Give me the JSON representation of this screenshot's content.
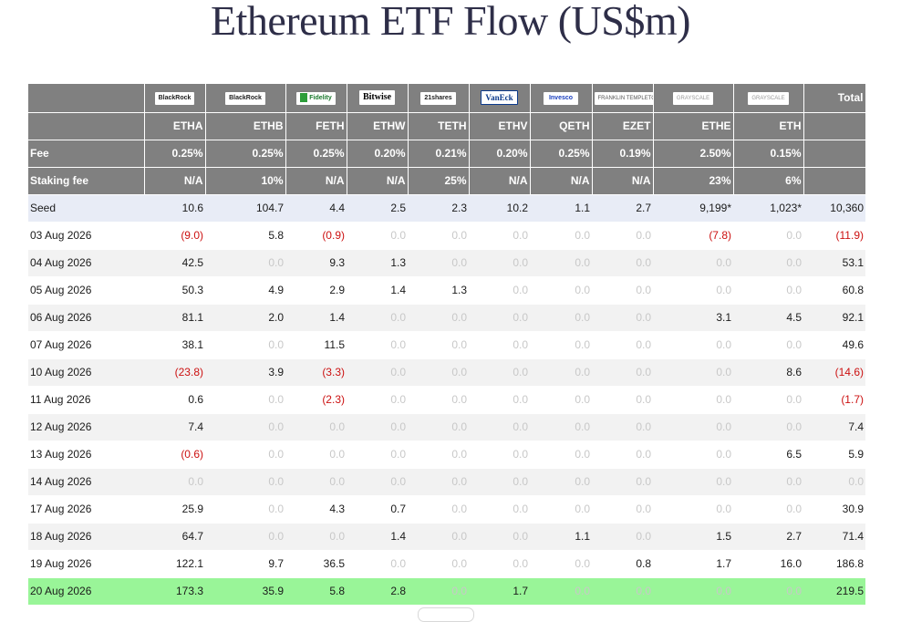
{
  "title": "Ethereum ETF Flow (US$m)",
  "issuers": [
    {
      "name": "BlackRock",
      "style": ""
    },
    {
      "name": "BlackRock",
      "style": ""
    },
    {
      "name": "Fidelity",
      "style": "fidelity"
    },
    {
      "name": "Bitwise",
      "style": "bitwise"
    },
    {
      "name": "21shares",
      "style": ""
    },
    {
      "name": "VanEck",
      "style": "vaneck"
    },
    {
      "name": "Invesco",
      "style": "invesco"
    },
    {
      "name": "FRANKLIN TEMPLETON",
      "style": "small"
    },
    {
      "name": "GRAYSCALE",
      "style": "gray"
    },
    {
      "name": "GRAYSCALE",
      "style": "gray"
    }
  ],
  "total_label": "Total",
  "tickers": [
    "ETHA",
    "ETHB",
    "FETH",
    "ETHW",
    "TETH",
    "ETHV",
    "QETH",
    "EZET",
    "ETHE",
    "ETH"
  ],
  "fee_label": "Fee",
  "fees": [
    "0.25%",
    "0.25%",
    "0.25%",
    "0.20%",
    "0.21%",
    "0.20%",
    "0.25%",
    "0.19%",
    "2.50%",
    "0.15%"
  ],
  "staking_label": "Staking fee",
  "staking_fees": [
    "N/A",
    "10%",
    "N/A",
    "N/A",
    "25%",
    "N/A",
    "N/A",
    "N/A",
    "23%",
    "6%"
  ],
  "rows": [
    {
      "date": "Seed",
      "values": [
        "10.6",
        "104.7",
        "4.4",
        "2.5",
        "2.3",
        "10.2",
        "1.1",
        "2.7",
        "9,199*",
        "1,023*"
      ],
      "total": "10,360"
    },
    {
      "date": "03 Aug 2026",
      "values": [
        "(9.0)",
        "5.8",
        "(0.9)",
        "0.0",
        "0.0",
        "0.0",
        "0.0",
        "0.0",
        "(7.8)",
        "0.0"
      ],
      "total": "(11.9)"
    },
    {
      "date": "04 Aug 2026",
      "values": [
        "42.5",
        "0.0",
        "9.3",
        "1.3",
        "0.0",
        "0.0",
        "0.0",
        "0.0",
        "0.0",
        "0.0"
      ],
      "total": "53.1"
    },
    {
      "date": "05 Aug 2026",
      "values": [
        "50.3",
        "4.9",
        "2.9",
        "1.4",
        "1.3",
        "0.0",
        "0.0",
        "0.0",
        "0.0",
        "0.0"
      ],
      "total": "60.8"
    },
    {
      "date": "06 Aug 2026",
      "values": [
        "81.1",
        "2.0",
        "1.4",
        "0.0",
        "0.0",
        "0.0",
        "0.0",
        "0.0",
        "3.1",
        "4.5"
      ],
      "total": "92.1"
    },
    {
      "date": "07 Aug 2026",
      "values": [
        "38.1",
        "0.0",
        "11.5",
        "0.0",
        "0.0",
        "0.0",
        "0.0",
        "0.0",
        "0.0",
        "0.0"
      ],
      "total": "49.6"
    },
    {
      "date": "10 Aug 2026",
      "values": [
        "(23.8)",
        "3.9",
        "(3.3)",
        "0.0",
        "0.0",
        "0.0",
        "0.0",
        "0.0",
        "0.0",
        "8.6"
      ],
      "total": "(14.6)"
    },
    {
      "date": "11 Aug 2026",
      "values": [
        "0.6",
        "0.0",
        "(2.3)",
        "0.0",
        "0.0",
        "0.0",
        "0.0",
        "0.0",
        "0.0",
        "0.0"
      ],
      "total": "(1.7)"
    },
    {
      "date": "12 Aug 2026",
      "values": [
        "7.4",
        "0.0",
        "0.0",
        "0.0",
        "0.0",
        "0.0",
        "0.0",
        "0.0",
        "0.0",
        "0.0"
      ],
      "total": "7.4"
    },
    {
      "date": "13 Aug 2026",
      "values": [
        "(0.6)",
        "0.0",
        "0.0",
        "0.0",
        "0.0",
        "0.0",
        "0.0",
        "0.0",
        "0.0",
        "6.5"
      ],
      "total": "5.9"
    },
    {
      "date": "14 Aug 2026",
      "values": [
        "0.0",
        "0.0",
        "0.0",
        "0.0",
        "0.0",
        "0.0",
        "0.0",
        "0.0",
        "0.0",
        "0.0"
      ],
      "total": "0.0"
    },
    {
      "date": "17 Aug 2026",
      "values": [
        "25.9",
        "0.0",
        "4.3",
        "0.7",
        "0.0",
        "0.0",
        "0.0",
        "0.0",
        "0.0",
        "0.0"
      ],
      "total": "30.9"
    },
    {
      "date": "18 Aug 2026",
      "values": [
        "64.7",
        "0.0",
        "0.0",
        "1.4",
        "0.0",
        "0.0",
        "1.1",
        "0.0",
        "1.5",
        "2.7"
      ],
      "total": "71.4"
    },
    {
      "date": "19 Aug 2026",
      "values": [
        "122.1",
        "9.7",
        "36.5",
        "0.0",
        "0.0",
        "0.0",
        "0.0",
        "0.8",
        "1.7",
        "16.0"
      ],
      "total": "186.8"
    },
    {
      "date": "20 Aug 2026",
      "values": [
        "173.3",
        "35.9",
        "5.8",
        "2.8",
        "0.0",
        "1.7",
        "0.0",
        "0.0",
        "0.0",
        "0.0"
      ],
      "total": "219.5",
      "highlight": true
    }
  ],
  "colors": {
    "header_bg": "#808080",
    "seed_bg": "#e8ecf6",
    "highlight_bg": "#99f598",
    "negative": "#cc1111",
    "zero": "#c8c8c8",
    "title": "#2e2e48"
  }
}
